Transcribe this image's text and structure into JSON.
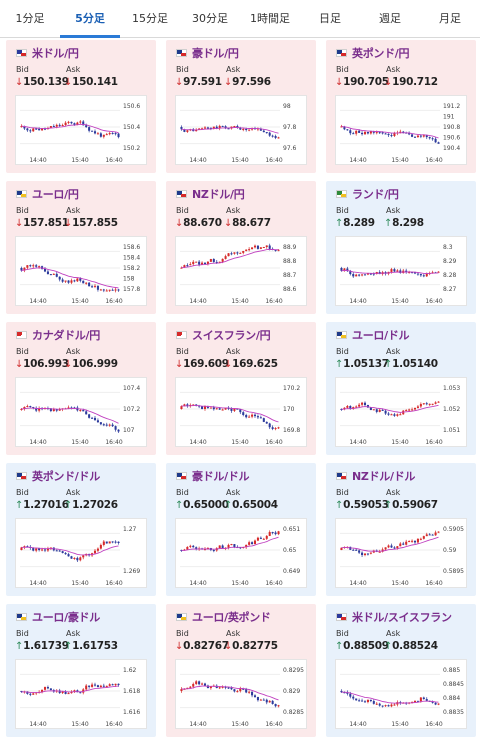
{
  "tabs": [
    "1分足",
    "5分足",
    "15分足",
    "30分足",
    "1時間足",
    "日足",
    "週足",
    "月足"
  ],
  "active_tab": "5分足",
  "labels": {
    "bid": "Bid",
    "ask": "Ask"
  },
  "x_labels": [
    "14:40",
    "15:40",
    "16:40"
  ],
  "colors": {
    "down_bg": "#fbe9ea",
    "up_bg": "#e8f1fb",
    "down_arrow": "#d03030",
    "up_arrow": "#2e8a5a",
    "candle_up": "#d62a2a",
    "candle_down": "#2c3a9c",
    "ma_line": "#c040c0"
  },
  "pairs": [
    {
      "name": "米ドル/円",
      "dir": "down",
      "bid": "150.139",
      "ask": "150.141",
      "flag": "us-jp",
      "yticks": [
        "150.6",
        "150.4",
        "150.2"
      ]
    },
    {
      "name": "豪ドル/円",
      "dir": "down",
      "bid": "97.591",
      "ask": "97.596",
      "flag": "au-jp",
      "yticks": [
        "98",
        "97.8",
        "97.6"
      ]
    },
    {
      "name": "英ポンド/円",
      "dir": "down",
      "bid": "190.705",
      "ask": "190.712",
      "flag": "gb-jp",
      "yticks": [
        "191.2",
        "191",
        "190.8",
        "190.6",
        "190.4"
      ]
    },
    {
      "name": "ユーロ/円",
      "dir": "down",
      "bid": "157.851",
      "ask": "157.855",
      "flag": "eu-jp",
      "yticks": [
        "158.6",
        "158.4",
        "158.2",
        "158",
        "157.8"
      ]
    },
    {
      "name": "NZドル/円",
      "dir": "down",
      "bid": "88.670",
      "ask": "88.677",
      "flag": "nz-jp",
      "yticks": [
        "88.9",
        "88.8",
        "88.7",
        "88.6"
      ]
    },
    {
      "name": "ランド/円",
      "dir": "up",
      "bid": "8.289",
      "ask": "8.298",
      "flag": "za-jp",
      "yticks": [
        "8.3",
        "8.29",
        "8.28",
        "8.27"
      ]
    },
    {
      "name": "カナダドル/円",
      "dir": "down",
      "bid": "106.993",
      "ask": "106.999",
      "flag": "ca-jp",
      "yticks": [
        "107.4",
        "107.2",
        "107"
      ]
    },
    {
      "name": "スイスフラン/円",
      "dir": "down",
      "bid": "169.609",
      "ask": "169.625",
      "flag": "ch-jp",
      "yticks": [
        "170.2",
        "170",
        "169.8"
      ]
    },
    {
      "name": "ユーロ/ドル",
      "dir": "up",
      "bid": "1.05137",
      "ask": "1.05140",
      "flag": "eu-us",
      "yticks": [
        "1.053",
        "1.052",
        "1.051"
      ]
    },
    {
      "name": "英ポンド/ドル",
      "dir": "up",
      "bid": "1.27016",
      "ask": "1.27026",
      "flag": "gb-us",
      "yticks": [
        "1.27",
        "1.269"
      ]
    },
    {
      "name": "豪ドル/ドル",
      "dir": "up",
      "bid": "0.65000",
      "ask": "0.65004",
      "flag": "au-us",
      "yticks": [
        "0.651",
        "0.65",
        "0.649"
      ]
    },
    {
      "name": "NZドル/ドル",
      "dir": "up",
      "bid": "0.59053",
      "ask": "0.59067",
      "flag": "nz-us",
      "yticks": [
        "0.5905",
        "0.59",
        "0.5895"
      ]
    },
    {
      "name": "ユーロ/豪ドル",
      "dir": "up",
      "bid": "1.61739",
      "ask": "1.61753",
      "flag": "eu-au",
      "yticks": [
        "1.62",
        "1.618",
        "1.616"
      ]
    },
    {
      "name": "ユーロ/英ポンド",
      "dir": "down",
      "bid": "0.82767",
      "ask": "0.82775",
      "flag": "eu-gb",
      "yticks": [
        "0.8295",
        "0.829",
        "0.8285"
      ]
    },
    {
      "name": "米ドル/スイスフラン",
      "dir": "up",
      "bid": "0.88509",
      "ask": "0.88524",
      "flag": "us-ch",
      "yticks": [
        "0.885",
        "0.8845",
        "0.884",
        "0.8835"
      ]
    }
  ]
}
